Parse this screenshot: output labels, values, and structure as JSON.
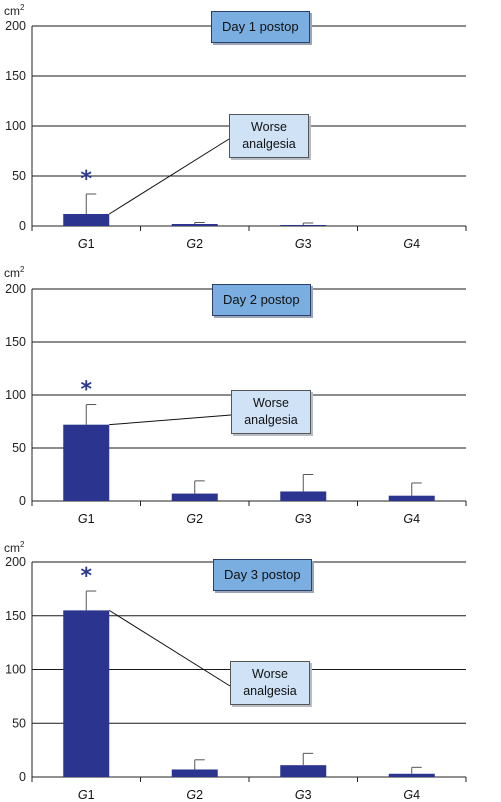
{
  "chart_data": [
    {
      "type": "bar",
      "categories": [
        "G1",
        "G2",
        "G3",
        "G4"
      ],
      "values": [
        12,
        2,
        1,
        0
      ],
      "errors": [
        20,
        1.5,
        2,
        0
      ],
      "unit": "cm2",
      "ylim": [
        0,
        200
      ],
      "yticks": [
        0,
        50,
        100,
        150,
        200
      ],
      "grid": true,
      "day_label": "Day 1 postop",
      "annotation": [
        "Worse",
        "analgesia"
      ],
      "significance_marker": "*",
      "marked_category": "G1",
      "bar_color": "#2b3590"
    },
    {
      "type": "bar",
      "categories": [
        "G1",
        "G2",
        "G3",
        "G4"
      ],
      "values": [
        72,
        7,
        9,
        5
      ],
      "errors": [
        19,
        12,
        16,
        12
      ],
      "unit": "cm2",
      "ylim": [
        0,
        200
      ],
      "yticks": [
        0,
        50,
        100,
        150,
        200
      ],
      "grid": true,
      "day_label": "Day 2 postop",
      "annotation": [
        "Worse",
        "analgesia"
      ],
      "significance_marker": "*",
      "marked_category": "G1",
      "bar_color": "#2b3590"
    },
    {
      "type": "bar",
      "categories": [
        "G1",
        "G2",
        "G3",
        "G4"
      ],
      "values": [
        155,
        7,
        11,
        3
      ],
      "errors": [
        18,
        9,
        11,
        6
      ],
      "unit": "cm2",
      "ylim": [
        0,
        200
      ],
      "yticks": [
        0,
        50,
        100,
        150,
        200
      ],
      "grid": true,
      "day_label": "Day 3 postop",
      "annotation": [
        "Worse",
        "analgesia"
      ],
      "significance_marker": "*",
      "marked_category": "G1",
      "bar_color": "#2b3590"
    }
  ]
}
